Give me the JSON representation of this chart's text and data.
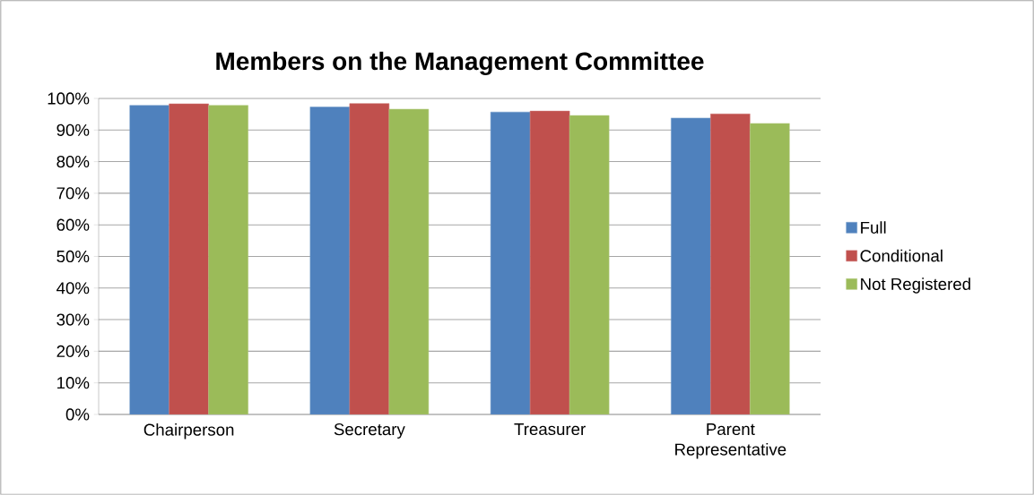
{
  "chart_data": {
    "type": "bar",
    "title": "Members on the Management Committee",
    "categories": [
      "Chairperson",
      "Secretary",
      "Treasurer",
      "Parent Representative"
    ],
    "series": [
      {
        "name": "Full",
        "color": "#4f81bd",
        "values": [
          97.8,
          97.3,
          95.7,
          93.8
        ]
      },
      {
        "name": "Conditional",
        "color": "#c0504d",
        "values": [
          98.3,
          98.4,
          96.0,
          95.1
        ]
      },
      {
        "name": "Not Registered",
        "color": "#9bbb59",
        "values": [
          97.8,
          96.6,
          94.6,
          92.1
        ]
      }
    ],
    "ylim": [
      0,
      100
    ],
    "yticks": [
      {
        "value": 0,
        "label": "0%"
      },
      {
        "value": 10,
        "label": "10%"
      },
      {
        "value": 20,
        "label": "20%"
      },
      {
        "value": 30,
        "label": "30%"
      },
      {
        "value": 40,
        "label": "40%"
      },
      {
        "value": 50,
        "label": "50%"
      },
      {
        "value": 60,
        "label": "60%"
      },
      {
        "value": 70,
        "label": "70%"
      },
      {
        "value": 80,
        "label": "80%"
      },
      {
        "value": 90,
        "label": "90%"
      },
      {
        "value": 100,
        "label": "100%"
      }
    ],
    "grid": "y",
    "legend": "right"
  }
}
